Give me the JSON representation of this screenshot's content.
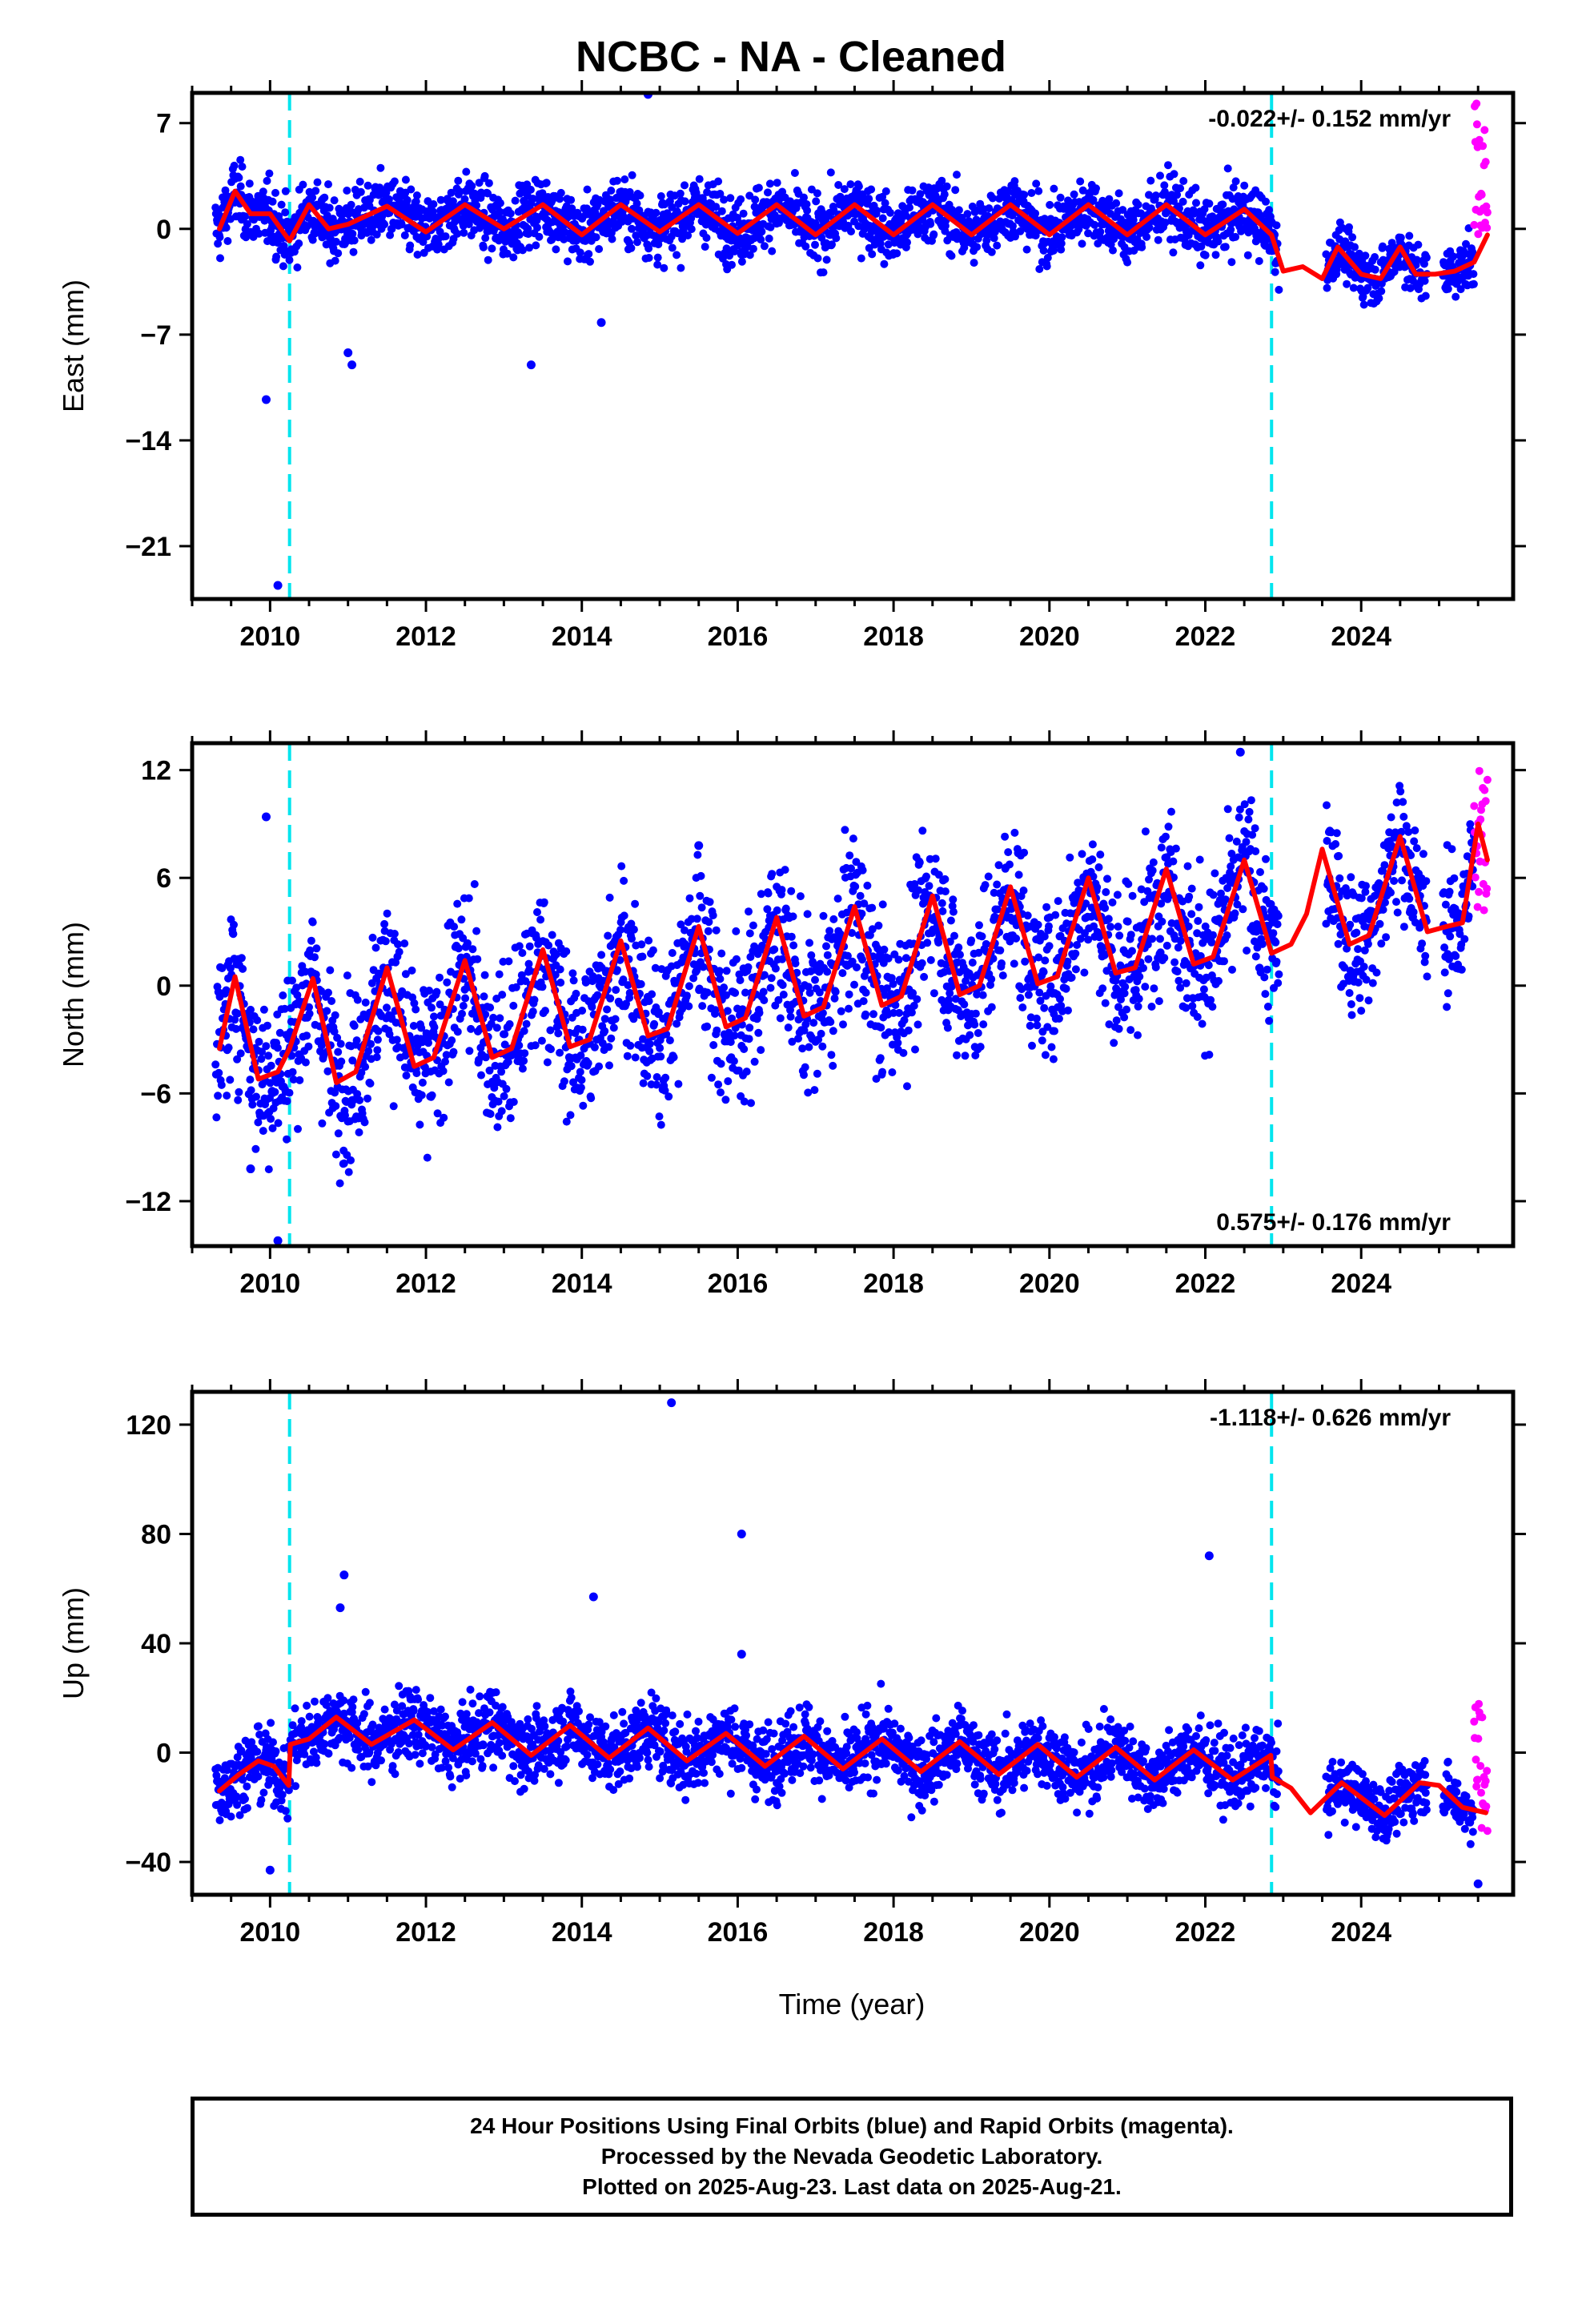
{
  "title": "NCBC  - NA - Cleaned",
  "xlabel": "Time (year)",
  "footer_lines": [
    "24 Hour Positions Using Final Orbits (blue) and Rapid Orbits (magenta).",
    "Processed by the Nevada Geodetic Laboratory.",
    "Plotted on 2025-Aug-23. Last data on 2025-Aug-21."
  ],
  "colors": {
    "final_orbits": "#0000ff",
    "rapid_orbits": "#ff00ff",
    "model_fit": "#ff0000",
    "event_lines": "#00e5ee"
  },
  "chart_data": [
    {
      "type": "scatter",
      "component": "East",
      "ylabel": "East (mm)",
      "xlim": [
        2009.0,
        2025.95
      ],
      "ylim": [
        -24.5,
        9.0
      ],
      "yticks": [
        7,
        0,
        -7,
        -14,
        -21
      ],
      "xticks": [
        2010,
        2012,
        2014,
        2016,
        2018,
        2020,
        2022,
        2024
      ],
      "rate_label": "-0.022+/- 0.152 mm/yr",
      "rate_position": "top-right",
      "event_lines_x": [
        2010.25,
        2022.85
      ],
      "series": [
        {
          "name": "Final Orbits (blue)",
          "color": "#0000ff",
          "time_range": [
            2009.3,
            2025.45
          ],
          "typical_range": [
            -4,
            5
          ],
          "outliers": [
            [
              2009.95,
              -11.3
            ],
            [
              2010.1,
              -23.6
            ],
            [
              2013.35,
              -9.0
            ],
            [
              2014.25,
              -6.2
            ],
            [
              2014.85,
              8.9
            ],
            [
              2011.0,
              -8.2
            ],
            [
              2011.05,
              -9.0
            ]
          ]
        },
        {
          "name": "Rapid Orbits (magenta)",
          "color": "#ff00ff",
          "time_range": [
            2025.45,
            2025.62
          ],
          "typical_range": [
            -1,
            8.8
          ]
        },
        {
          "name": "model fit",
          "color": "#ff0000",
          "x": [
            2009.35,
            2009.55,
            2009.75,
            2010.0,
            2010.25,
            2010.5,
            2010.75,
            2011.0,
            2011.5,
            2012.0,
            2012.5,
            2013.0,
            2013.5,
            2014.0,
            2014.5,
            2015.0,
            2015.5,
            2016.0,
            2016.5,
            2017.0,
            2017.5,
            2018.0,
            2018.5,
            2019.0,
            2019.5,
            2020.0,
            2020.5,
            2021.0,
            2021.5,
            2022.0,
            2022.5,
            2022.85,
            2023.0,
            2023.25,
            2023.5,
            2023.7,
            2024.0,
            2024.25,
            2024.5,
            2024.7,
            2024.95,
            2025.2,
            2025.45,
            2025.62
          ],
          "y": [
            0.0,
            2.5,
            1.0,
            1.0,
            -0.8,
            1.6,
            0.0,
            0.3,
            1.5,
            -0.2,
            1.6,
            0.0,
            1.6,
            -0.4,
            1.6,
            -0.2,
            1.6,
            -0.3,
            1.6,
            -0.4,
            1.6,
            -0.4,
            1.6,
            -0.4,
            1.6,
            -0.4,
            1.6,
            -0.4,
            1.6,
            -0.4,
            1.3,
            -0.4,
            -2.8,
            -2.5,
            -3.3,
            -1.2,
            -3.0,
            -3.3,
            -1.2,
            -3.0,
            -3.0,
            -2.8,
            -2.2,
            -0.4
          ]
        }
      ]
    },
    {
      "type": "scatter",
      "component": "North",
      "ylabel": "North (mm)",
      "xlim": [
        2009.0,
        2025.95
      ],
      "ylim": [
        -14.5,
        13.5
      ],
      "yticks": [
        12,
        6,
        0,
        -6,
        -12
      ],
      "xticks": [
        2010,
        2012,
        2014,
        2016,
        2018,
        2020,
        2022,
        2024
      ],
      "rate_label": "0.575+/- 0.176 mm/yr",
      "rate_position": "bottom-right",
      "event_lines_x": [
        2010.25,
        2022.85
      ],
      "series": [
        {
          "name": "Final Orbits (blue)",
          "color": "#0000ff",
          "time_range": [
            2009.3,
            2025.45
          ],
          "typical_range": [
            -8,
            11
          ],
          "outliers": [
            [
              2009.95,
              9.4
            ],
            [
              2010.1,
              -14.2
            ],
            [
              2009.75,
              -10.2
            ],
            [
              2022.45,
              13.0
            ],
            [
              2015.5,
              7.8
            ]
          ]
        },
        {
          "name": "Rapid Orbits (magenta)",
          "color": "#ff00ff",
          "time_range": [
            2025.45,
            2025.62
          ],
          "typical_range": [
            3,
            12.2
          ]
        },
        {
          "name": "model fit",
          "color": "#ff0000",
          "x": [
            2009.35,
            2009.55,
            2009.85,
            2010.1,
            2010.25,
            2010.55,
            2010.85,
            2011.1,
            2011.5,
            2011.85,
            2012.1,
            2012.5,
            2012.85,
            2013.1,
            2013.5,
            2013.85,
            2014.1,
            2014.5,
            2014.85,
            2015.1,
            2015.5,
            2015.85,
            2016.1,
            2016.5,
            2016.85,
            2017.1,
            2017.5,
            2017.85,
            2018.1,
            2018.5,
            2018.85,
            2019.1,
            2019.5,
            2019.85,
            2020.1,
            2020.5,
            2020.85,
            2021.1,
            2021.5,
            2021.85,
            2022.1,
            2022.5,
            2022.85,
            2023.1,
            2023.3,
            2023.5,
            2023.85,
            2024.1,
            2024.5,
            2024.85,
            2025.1,
            2025.3,
            2025.5,
            2025.62
          ],
          "y": [
            -3.5,
            0.5,
            -5.2,
            -4.8,
            -3.5,
            0.4,
            -5.4,
            -4.8,
            1.0,
            -4.5,
            -4.0,
            1.4,
            -4.0,
            -3.5,
            2.0,
            -3.4,
            -3.0,
            2.5,
            -2.8,
            -2.4,
            3.3,
            -2.3,
            -1.8,
            3.8,
            -1.7,
            -1.2,
            4.4,
            -1.1,
            -0.6,
            5.0,
            -0.5,
            0.0,
            5.5,
            0.1,
            0.5,
            6.0,
            0.7,
            1.0,
            6.5,
            1.2,
            1.6,
            7.0,
            1.8,
            2.3,
            4.0,
            7.6,
            2.3,
            2.8,
            8.3,
            3.0,
            3.3,
            3.5,
            9.0,
            7.0
          ]
        }
      ]
    },
    {
      "type": "scatter",
      "component": "Up",
      "ylabel": "Up (mm)",
      "xlim": [
        2009.0,
        2025.95
      ],
      "ylim": [
        -52,
        132
      ],
      "yticks": [
        120,
        80,
        40,
        0,
        -40
      ],
      "xticks": [
        2010,
        2012,
        2014,
        2016,
        2018,
        2020,
        2022,
        2024
      ],
      "rate_label": "-1.118+/- 0.626 mm/yr",
      "rate_position": "top-right",
      "event_lines_x": [
        2010.25,
        2022.85
      ],
      "series": [
        {
          "name": "Final Orbits (blue)",
          "color": "#0000ff",
          "time_range": [
            2009.3,
            2025.45
          ],
          "typical_range": [
            -30,
            25
          ],
          "outliers": [
            [
              2010.95,
              65
            ],
            [
              2010.9,
              53
            ],
            [
              2014.15,
              57
            ],
            [
              2015.15,
              128
            ],
            [
              2016.05,
              80
            ],
            [
              2016.05,
              36
            ],
            [
              2022.05,
              72
            ],
            [
              2010.0,
              -43
            ],
            [
              2025.5,
              -48
            ]
          ]
        },
        {
          "name": "Rapid Orbits (magenta)",
          "color": "#ff00ff",
          "time_range": [
            2025.45,
            2025.62
          ],
          "typical_range": [
            -30,
            18
          ]
        },
        {
          "name": "model fit",
          "color": "#ff0000",
          "x": [
            2009.35,
            2009.6,
            2009.85,
            2010.05,
            2010.24,
            2010.26,
            2010.5,
            2010.85,
            2011.3,
            2011.85,
            2012.35,
            2012.85,
            2013.35,
            2013.85,
            2014.35,
            2014.85,
            2015.35,
            2015.85,
            2016.35,
            2016.85,
            2017.35,
            2017.85,
            2018.35,
            2018.85,
            2019.35,
            2019.85,
            2020.35,
            2020.85,
            2021.35,
            2021.85,
            2022.35,
            2022.84,
            2022.86,
            2023.1,
            2023.35,
            2023.75,
            2024.3,
            2024.75,
            2025.0,
            2025.3,
            2025.6
          ],
          "y": [
            -14,
            -8,
            -3,
            -5,
            -12,
            3,
            5,
            13,
            3,
            12,
            1,
            11,
            -1,
            10,
            -2,
            9,
            -3,
            7,
            -5,
            6,
            -6,
            5,
            -7,
            4,
            -8,
            3,
            -9,
            2,
            -10,
            1,
            -10,
            -1,
            -9,
            -13,
            -22,
            -11,
            -23,
            -11,
            -12,
            -20,
            -22
          ]
        }
      ]
    }
  ]
}
